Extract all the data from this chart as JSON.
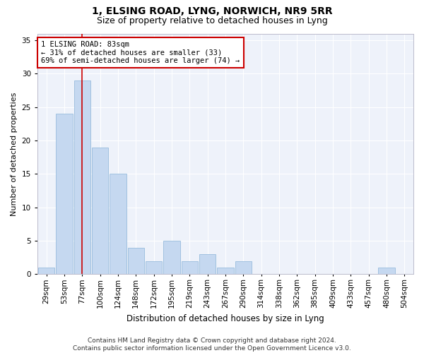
{
  "title": "1, ELSING ROAD, LYNG, NORWICH, NR9 5RR",
  "subtitle": "Size of property relative to detached houses in Lyng",
  "xlabel": "Distribution of detached houses by size in Lyng",
  "ylabel": "Number of detached properties",
  "bar_color": "#c5d8f0",
  "bar_edge_color": "#8ab4d8",
  "background_color": "#eef2fa",
  "grid_color": "#ffffff",
  "categories": [
    "29sqm",
    "53sqm",
    "77sqm",
    "100sqm",
    "124sqm",
    "148sqm",
    "172sqm",
    "195sqm",
    "219sqm",
    "243sqm",
    "267sqm",
    "290sqm",
    "314sqm",
    "338sqm",
    "362sqm",
    "385sqm",
    "409sqm",
    "433sqm",
    "457sqm",
    "480sqm",
    "504sqm"
  ],
  "values": [
    1,
    24,
    29,
    19,
    15,
    4,
    2,
    5,
    2,
    3,
    1,
    2,
    0,
    0,
    0,
    0,
    0,
    0,
    0,
    1,
    0
  ],
  "ylim": [
    0,
    36
  ],
  "yticks": [
    0,
    5,
    10,
    15,
    20,
    25,
    30,
    35
  ],
  "annotation_text": "1 ELSING ROAD: 83sqm\n← 31% of detached houses are smaller (33)\n69% of semi-detached houses are larger (74) →",
  "vline_x_index": 2,
  "vline_color": "#cc0000",
  "annotation_box_facecolor": "#ffffff",
  "annotation_box_edgecolor": "#cc0000",
  "footer_text": "Contains HM Land Registry data © Crown copyright and database right 2024.\nContains public sector information licensed under the Open Government Licence v3.0.",
  "title_fontsize": 10,
  "subtitle_fontsize": 9,
  "ylabel_fontsize": 8,
  "xlabel_fontsize": 8.5,
  "tick_fontsize": 7.5,
  "annotation_fontsize": 7.5,
  "footer_fontsize": 6.5
}
